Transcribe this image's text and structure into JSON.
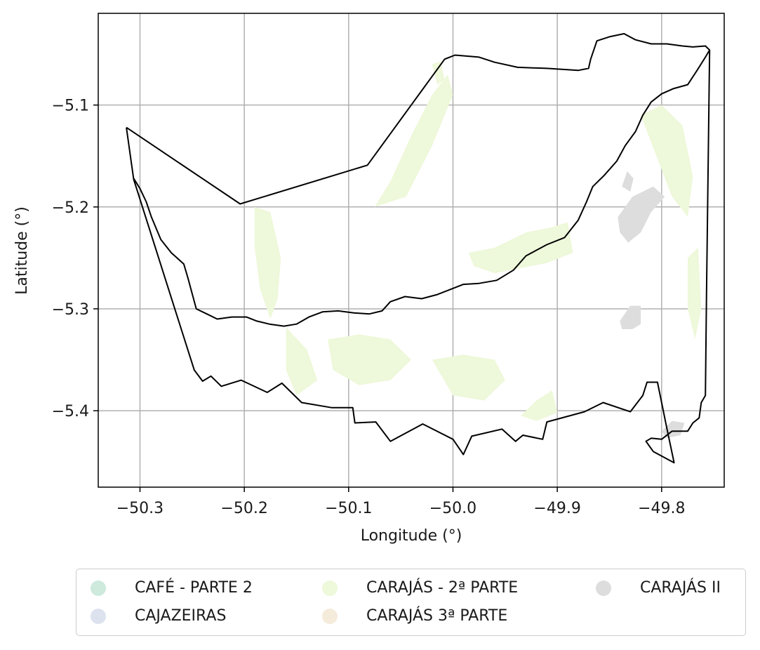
{
  "map": {
    "xlabel": "Longitude (°)",
    "ylabel": "Latitude (°)",
    "xlim": [
      -50.34,
      -49.74
    ],
    "ylim": [
      -5.475,
      -5.01
    ],
    "xticks": [
      {
        "value": -50.3,
        "label": "−50.3"
      },
      {
        "value": -50.2,
        "label": "−50.2"
      },
      {
        "value": -50.1,
        "label": "−50.1"
      },
      {
        "value": -50.0,
        "label": "−50.0"
      },
      {
        "value": -49.9,
        "label": "−49.9"
      },
      {
        "value": -49.8,
        "label": "−49.8"
      }
    ],
    "yticks": [
      {
        "value": -5.1,
        "label": "−5.1"
      },
      {
        "value": -5.2,
        "label": "−5.2"
      },
      {
        "value": -5.3,
        "label": "−5.3"
      },
      {
        "value": -5.4,
        "label": "−5.4"
      }
    ],
    "grid": true,
    "legend_placement": "below the map, outside the axes"
  },
  "legend": {
    "columns": 3,
    "items": [
      {
        "label": "CAFÉ - PARTE 2",
        "color": "#cdeadc"
      },
      {
        "label": "CAJAZEIRAS",
        "color": "#dde2ef"
      },
      {
        "label": "CARAJÁS - 2ª PARTE",
        "color": "#eef8da"
      },
      {
        "label": "CARAJÁS 3ª PARTE",
        "color": "#f5ebdb"
      },
      {
        "label": "CARAJÁS II",
        "color": "#dddddd"
      }
    ]
  },
  "boundaries": [
    {
      "name": "outer-boundary",
      "color": "#000000",
      "coords": [
        [
          -50.313,
          -5.122
        ],
        [
          -50.204,
          -5.197
        ],
        [
          -50.082,
          -5.159
        ],
        [
          -50.008,
          -5.055
        ],
        [
          -49.998,
          -5.051
        ],
        [
          -49.975,
          -5.053
        ],
        [
          -49.96,
          -5.058
        ],
        [
          -49.938,
          -5.063
        ],
        [
          -49.91,
          -5.064
        ],
        [
          -49.88,
          -5.066
        ],
        [
          -49.87,
          -5.064
        ],
        [
          -49.868,
          -5.055
        ],
        [
          -49.862,
          -5.037
        ],
        [
          -49.85,
          -5.033
        ],
        [
          -49.836,
          -5.03
        ],
        [
          -49.825,
          -5.036
        ],
        [
          -49.81,
          -5.04
        ],
        [
          -49.795,
          -5.04
        ],
        [
          -49.78,
          -5.042
        ],
        [
          -49.77,
          -5.043
        ],
        [
          -49.758,
          -5.042
        ],
        [
          -49.754,
          -5.046
        ],
        [
          -49.757,
          -5.29
        ],
        [
          -49.758,
          -5.385
        ],
        [
          -49.762,
          -5.392
        ],
        [
          -49.764,
          -5.407
        ],
        [
          -49.77,
          -5.412
        ],
        [
          -49.775,
          -5.42
        ],
        [
          -49.79,
          -5.42
        ],
        [
          -49.8,
          -5.428
        ],
        [
          -49.81,
          -5.427
        ],
        [
          -49.815,
          -5.43
        ],
        [
          -49.808,
          -5.44
        ],
        [
          -49.788,
          -5.451
        ],
        [
          -49.795,
          -5.417
        ],
        [
          -49.804,
          -5.372
        ],
        [
          -49.814,
          -5.372
        ],
        [
          -49.818,
          -5.385
        ],
        [
          -49.83,
          -5.401
        ],
        [
          -49.856,
          -5.392
        ],
        [
          -49.874,
          -5.401
        ],
        [
          -49.91,
          -5.411
        ],
        [
          -49.914,
          -5.428
        ],
        [
          -49.933,
          -5.424
        ],
        [
          -49.94,
          -5.43
        ],
        [
          -49.953,
          -5.418
        ],
        [
          -49.982,
          -5.425
        ],
        [
          -49.99,
          -5.443
        ],
        [
          -50.0,
          -5.428
        ],
        [
          -50.029,
          -5.413
        ],
        [
          -50.06,
          -5.43
        ],
        [
          -50.074,
          -5.411
        ],
        [
          -50.094,
          -5.412
        ],
        [
          -50.096,
          -5.397
        ],
        [
          -50.116,
          -5.397
        ],
        [
          -50.145,
          -5.392
        ],
        [
          -50.164,
          -5.373
        ],
        [
          -50.178,
          -5.382
        ],
        [
          -50.203,
          -5.37
        ],
        [
          -50.222,
          -5.376
        ],
        [
          -50.232,
          -5.366
        ],
        [
          -50.24,
          -5.371
        ],
        [
          -50.248,
          -5.36
        ],
        [
          -50.306,
          -5.173
        ],
        [
          -50.313,
          -5.122
        ]
      ]
    },
    {
      "name": "inner-boundary",
      "color": "#000000",
      "coords": [
        [
          -50.306,
          -5.172
        ],
        [
          -50.3,
          -5.182
        ],
        [
          -50.294,
          -5.195
        ],
        [
          -50.289,
          -5.21
        ],
        [
          -50.28,
          -5.232
        ],
        [
          -50.27,
          -5.245
        ],
        [
          -50.258,
          -5.256
        ],
        [
          -50.254,
          -5.27
        ],
        [
          -50.25,
          -5.285
        ],
        [
          -50.246,
          -5.3
        ],
        [
          -50.236,
          -5.305
        ],
        [
          -50.226,
          -5.31
        ],
        [
          -50.212,
          -5.308
        ],
        [
          -50.198,
          -5.308
        ],
        [
          -50.188,
          -5.312
        ],
        [
          -50.176,
          -5.315
        ],
        [
          -50.162,
          -5.317
        ],
        [
          -50.15,
          -5.315
        ],
        [
          -50.138,
          -5.308
        ],
        [
          -50.125,
          -5.303
        ],
        [
          -50.11,
          -5.302
        ],
        [
          -50.095,
          -5.304
        ],
        [
          -50.08,
          -5.305
        ],
        [
          -50.068,
          -5.302
        ],
        [
          -50.06,
          -5.293
        ],
        [
          -50.046,
          -5.288
        ],
        [
          -50.03,
          -5.29
        ],
        [
          -50.015,
          -5.286
        ],
        [
          -50.005,
          -5.282
        ],
        [
          -49.99,
          -5.276
        ],
        [
          -49.975,
          -5.275
        ],
        [
          -49.958,
          -5.272
        ],
        [
          -49.942,
          -5.262
        ],
        [
          -49.93,
          -5.248
        ],
        [
          -49.91,
          -5.237
        ],
        [
          -49.893,
          -5.23
        ],
        [
          -49.88,
          -5.213
        ],
        [
          -49.872,
          -5.195
        ],
        [
          -49.866,
          -5.18
        ],
        [
          -49.855,
          -5.169
        ],
        [
          -49.843,
          -5.155
        ],
        [
          -49.835,
          -5.14
        ],
        [
          -49.825,
          -5.126
        ],
        [
          -49.818,
          -5.11
        ],
        [
          -49.81,
          -5.097
        ],
        [
          -49.8,
          -5.089
        ],
        [
          -49.789,
          -5.084
        ],
        [
          -49.775,
          -5.08
        ],
        [
          -49.766,
          -5.066
        ],
        [
          -49.758,
          -5.053
        ],
        [
          -49.754,
          -5.046
        ]
      ]
    }
  ],
  "areas": [
    {
      "name": "carajas-ii-area",
      "color": "#dddddd",
      "coords": [
        [
          -49.842,
          -5.21
        ],
        [
          -49.828,
          -5.19
        ],
        [
          -49.808,
          -5.18
        ],
        [
          -49.797,
          -5.19
        ],
        [
          -49.81,
          -5.205
        ],
        [
          -49.82,
          -5.225
        ],
        [
          -49.832,
          -5.235
        ],
        [
          -49.84,
          -5.225
        ]
      ]
    },
    {
      "name": "carajas-ii-area",
      "color": "#dddddd",
      "coords": [
        [
          -49.84,
          -5.312
        ],
        [
          -49.83,
          -5.297
        ],
        [
          -49.82,
          -5.297
        ],
        [
          -49.82,
          -5.315
        ],
        [
          -49.828,
          -5.32
        ],
        [
          -49.838,
          -5.32
        ]
      ]
    },
    {
      "name": "carajas-ii-area",
      "color": "#dddddd",
      "coords": [
        [
          -49.838,
          -5.18
        ],
        [
          -49.833,
          -5.165
        ],
        [
          -49.827,
          -5.172
        ],
        [
          -49.83,
          -5.185
        ]
      ]
    },
    {
      "name": "carajas-ii-area",
      "color": "#dddddd",
      "coords": [
        [
          -49.8,
          -5.42
        ],
        [
          -49.79,
          -5.41
        ],
        [
          -49.778,
          -5.412
        ],
        [
          -49.782,
          -5.424
        ],
        [
          -49.795,
          -5.427
        ]
      ]
    },
    {
      "name": "carajas-2-parte-area",
      "color": "#eef8da",
      "coords": [
        [
          -49.985,
          -5.245
        ],
        [
          -49.96,
          -5.24
        ],
        [
          -49.93,
          -5.225
        ],
        [
          -49.905,
          -5.22
        ],
        [
          -49.89,
          -5.215
        ],
        [
          -49.885,
          -5.245
        ],
        [
          -49.91,
          -5.255
        ],
        [
          -49.935,
          -5.26
        ],
        [
          -49.96,
          -5.265
        ],
        [
          -49.98,
          -5.258
        ]
      ]
    },
    {
      "name": "carajas-2-parte-area",
      "color": "#eef8da",
      "coords": [
        [
          -50.19,
          -5.2
        ],
        [
          -50.175,
          -5.205
        ],
        [
          -50.165,
          -5.25
        ],
        [
          -50.168,
          -5.29
        ],
        [
          -50.175,
          -5.31
        ],
        [
          -50.185,
          -5.28
        ],
        [
          -50.19,
          -5.24
        ]
      ]
    },
    {
      "name": "carajas-2-parte-area",
      "color": "#eef8da",
      "coords": [
        [
          -50.16,
          -5.318
        ],
        [
          -50.14,
          -5.34
        ],
        [
          -50.13,
          -5.37
        ],
        [
          -50.15,
          -5.385
        ],
        [
          -50.16,
          -5.36
        ]
      ]
    },
    {
      "name": "carajas-2-parte-area",
      "color": "#eef8da",
      "coords": [
        [
          -50.12,
          -5.33
        ],
        [
          -50.09,
          -5.325
        ],
        [
          -50.06,
          -5.33
        ],
        [
          -50.04,
          -5.35
        ],
        [
          -50.06,
          -5.37
        ],
        [
          -50.09,
          -5.375
        ],
        [
          -50.115,
          -5.36
        ]
      ]
    },
    {
      "name": "carajas-2-parte-area",
      "color": "#eef8da",
      "coords": [
        [
          -50.02,
          -5.35
        ],
        [
          -49.99,
          -5.345
        ],
        [
          -49.96,
          -5.35
        ],
        [
          -49.95,
          -5.37
        ],
        [
          -49.97,
          -5.39
        ],
        [
          -50.0,
          -5.385
        ]
      ]
    },
    {
      "name": "carajas-2-parte-area",
      "color": "#eef8da",
      "coords": [
        [
          -50.075,
          -5.2
        ],
        [
          -50.06,
          -5.175
        ],
        [
          -50.04,
          -5.13
        ],
        [
          -50.02,
          -5.09
        ],
        [
          -50.005,
          -5.07
        ],
        [
          -50.0,
          -5.09
        ],
        [
          -50.02,
          -5.14
        ],
        [
          -50.045,
          -5.19
        ]
      ]
    },
    {
      "name": "carajas-2-parte-area",
      "color": "#eef8da",
      "coords": [
        [
          -49.82,
          -5.11
        ],
        [
          -49.8,
          -5.1
        ],
        [
          -49.78,
          -5.12
        ],
        [
          -49.77,
          -5.17
        ],
        [
          -49.775,
          -5.21
        ],
        [
          -49.79,
          -5.19
        ],
        [
          -49.805,
          -5.15
        ]
      ]
    },
    {
      "name": "carajas-2-parte-area",
      "color": "#eef8da",
      "coords": [
        [
          -49.775,
          -5.25
        ],
        [
          -49.765,
          -5.24
        ],
        [
          -49.762,
          -5.3
        ],
        [
          -49.768,
          -5.33
        ],
        [
          -49.775,
          -5.3
        ]
      ]
    },
    {
      "name": "carajas-2-parte-area",
      "color": "#eef8da",
      "coords": [
        [
          -49.905,
          -5.38
        ],
        [
          -49.92,
          -5.39
        ],
        [
          -49.935,
          -5.405
        ],
        [
          -49.92,
          -5.41
        ],
        [
          -49.9,
          -5.402
        ]
      ]
    },
    {
      "name": "carajas-2-parte-area",
      "color": "#eef8da",
      "coords": [
        [
          -50.02,
          -5.06
        ],
        [
          -50.012,
          -5.057
        ],
        [
          -50.008,
          -5.075
        ],
        [
          -50.015,
          -5.08
        ]
      ]
    }
  ]
}
